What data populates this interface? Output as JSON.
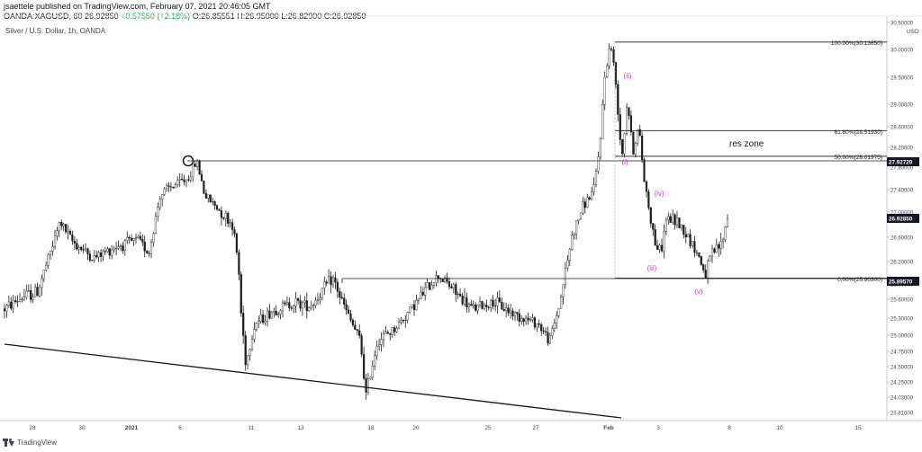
{
  "header": {
    "line1": "jsaettele published on TradingView.com, February 07, 2021 20:46:05 GMT",
    "symbol": "OANDA:XAGUSD, 60",
    "last": "26.92850",
    "change": "+0.57550 (+2.18%)",
    "ohlc": "O:26.85551 H:26.95000 L:26.82900 C:26.92850"
  },
  "chart_title": "Silver / U.S. Dollar, 1h, OANDA",
  "footer": {
    "brand": "TradingView"
  },
  "colors": {
    "candle": "#1e1e1e",
    "label": "#e12fd6",
    "axis_text": "#434651",
    "grid": "#e6e6e6",
    "last_price_bg": "#131722",
    "positive": "#1a9a4a"
  },
  "chart_data": {
    "type": "line",
    "style": "candlestick (hourly OHLC, monochrome)",
    "symbol": "XAGUSD",
    "currency": "USD",
    "y_axis": {
      "ticks": [
        "30.50000",
        "30.00000",
        "29.50000",
        "29.00000",
        "28.60000",
        "28.20000",
        "27.80000",
        "27.40000",
        "27.00000",
        "26.60000",
        "26.20000",
        "25.80000",
        "25.60000",
        "25.30000",
        "25.00000",
        "24.75000",
        "24.50000",
        "24.25000",
        "24.03000",
        "23.81000"
      ]
    },
    "x_axis": {
      "ticks": [
        "28",
        "30",
        "2021",
        "6",
        "11",
        "13",
        "18",
        "20",
        "25",
        "27",
        "Feb",
        "3",
        "8",
        "10",
        "15"
      ]
    },
    "price_labels": [
      {
        "value": "27.92720",
        "dark": true
      },
      {
        "value": "26.92850",
        "dark": true
      },
      {
        "value": "25.89570",
        "dark": true
      }
    ],
    "fib_levels": [
      {
        "label": "100.00%(30.13650)",
        "value": 30.1365
      },
      {
        "label": "61.80%(28.51930)",
        "value": 28.5193
      },
      {
        "label": "50.00%(28.01975)",
        "value": 28.01975
      },
      {
        "label": "0.00%(25.90300)",
        "value": 25.903
      }
    ],
    "annotations": [
      "res zone"
    ],
    "wave_labels": [
      "(i)",
      "(ii)",
      "(iii)",
      "(iv)",
      "(v)"
    ],
    "price_path": [
      {
        "t": 0,
        "p": 25.45
      },
      {
        "t": 1.5,
        "p": 25.62
      },
      {
        "t": 3,
        "p": 25.7
      },
      {
        "t": 5,
        "p": 26.85
      },
      {
        "t": 6,
        "p": 26.55
      },
      {
        "t": 8,
        "p": 26.25
      },
      {
        "t": 10,
        "p": 26.45
      },
      {
        "t": 12,
        "p": 26.55
      },
      {
        "t": 13,
        "p": 26.35
      },
      {
        "t": 14,
        "p": 27.3
      },
      {
        "t": 15,
        "p": 27.45
      },
      {
        "t": 16.5,
        "p": 27.6
      },
      {
        "t": 17.3,
        "p": 27.92
      },
      {
        "t": 18,
        "p": 27.3
      },
      {
        "t": 19,
        "p": 27.1
      },
      {
        "t": 20.5,
        "p": 26.8
      },
      {
        "t": 21,
        "p": 26.2
      },
      {
        "t": 21.3,
        "p": 25.3
      },
      {
        "t": 21.7,
        "p": 24.55
      },
      {
        "t": 22.5,
        "p": 25.2
      },
      {
        "t": 24,
        "p": 25.4
      },
      {
        "t": 26,
        "p": 25.55
      },
      {
        "t": 27.5,
        "p": 25.5
      },
      {
        "t": 29.5,
        "p": 25.9
      },
      {
        "t": 31,
        "p": 25.3
      },
      {
        "t": 32,
        "p": 24.9
      },
      {
        "t": 32.5,
        "p": 24.05
      },
      {
        "t": 33.5,
        "p": 24.9
      },
      {
        "t": 35,
        "p": 25.1
      },
      {
        "t": 37,
        "p": 25.55
      },
      {
        "t": 39,
        "p": 25.95
      },
      {
        "t": 40.5,
        "p": 25.7
      },
      {
        "t": 42,
        "p": 25.45
      },
      {
        "t": 44,
        "p": 25.55
      },
      {
        "t": 46,
        "p": 25.35
      },
      {
        "t": 48,
        "p": 25.2
      },
      {
        "t": 49,
        "p": 24.9
      },
      {
        "t": 50,
        "p": 25.6
      },
      {
        "t": 51,
        "p": 26.6
      },
      {
        "t": 52,
        "p": 27.1
      },
      {
        "t": 53,
        "p": 27.4
      },
      {
        "t": 53.5,
        "p": 28.2
      },
      {
        "t": 54,
        "p": 29.6
      },
      {
        "t": 54.5,
        "p": 30.13
      },
      {
        "t": 55,
        "p": 29.3
      },
      {
        "t": 55.5,
        "p": 28.0
      },
      {
        "t": 56,
        "p": 29.1
      },
      {
        "t": 56.5,
        "p": 28.1
      },
      {
        "t": 57,
        "p": 28.6
      },
      {
        "t": 57.5,
        "p": 27.6
      },
      {
        "t": 58,
        "p": 27.0
      },
      {
        "t": 58.5,
        "p": 26.5
      },
      {
        "t": 59,
        "p": 26.35
      },
      {
        "t": 59.5,
        "p": 26.9
      },
      {
        "t": 60.5,
        "p": 26.85
      },
      {
        "t": 61.5,
        "p": 26.6
      },
      {
        "t": 62.5,
        "p": 26.25
      },
      {
        "t": 63,
        "p": 25.95
      },
      {
        "t": 63.5,
        "p": 26.3
      },
      {
        "t": 64.5,
        "p": 26.5
      },
      {
        "t": 65,
        "p": 26.93
      }
    ]
  }
}
